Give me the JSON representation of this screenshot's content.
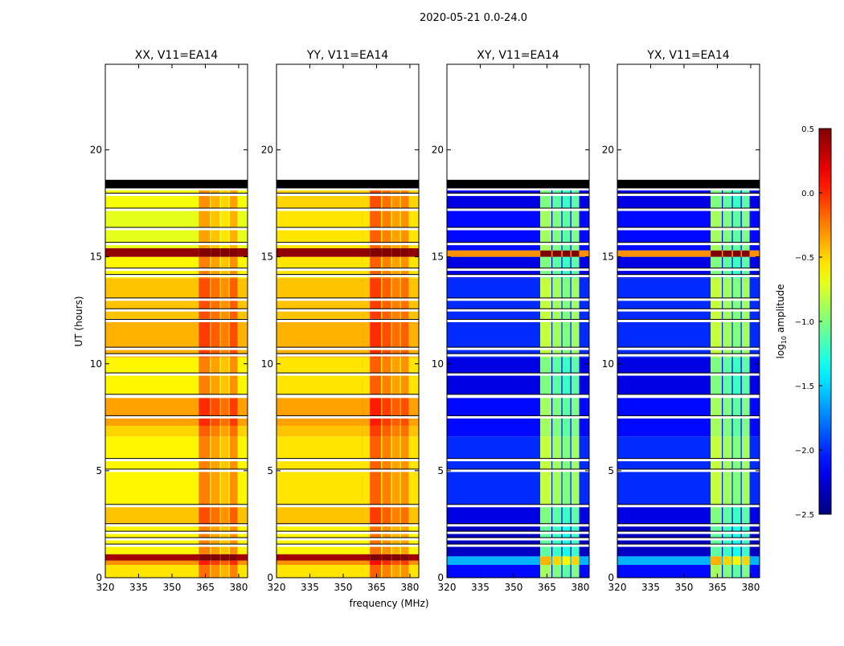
{
  "chart_data": {
    "type": "heatmap",
    "suptitle": "2020-05-21 0.0-24.0",
    "xlabel": "frequency (MHz)",
    "ylabel": "UT (hours)",
    "xlim": [
      320,
      384
    ],
    "ylim": [
      0,
      24
    ],
    "xticks": [
      "320",
      "335",
      "350",
      "365",
      "380"
    ],
    "yticks": [
      "0",
      "5",
      "10",
      "15",
      "20"
    ],
    "colorbar": {
      "label_main": "log",
      "label_sub": "10",
      "label_rest": " amplitude",
      "range": [
        -2.5,
        0.5
      ],
      "ticks": [
        "0.5",
        "0.0",
        "−0.5",
        "−1.0",
        "−1.5",
        "−2.0",
        "−2.5"
      ],
      "colormap": "jet"
    },
    "flagged_band": [
      18.2,
      18.6
    ],
    "gap_hours": [
      1.5,
      1.8,
      2.1,
      2.45,
      3.35,
      5.0,
      5.5,
      7.5,
      8.5,
      9.5,
      10.4,
      10.7,
      12.0,
      12.5,
      13.0,
      14.1,
      14.4,
      15.6,
      16.3,
      17.2,
      17.9
    ],
    "panels": [
      {
        "title": "XX, V11=EA14",
        "segments": [
          [
            0,
            0.6,
            -0.55
          ],
          [
            0.6,
            0.8,
            -0.3
          ],
          [
            0.8,
            1.1,
            0.4
          ],
          [
            1.1,
            2.4,
            -0.6
          ],
          [
            2.5,
            3.4,
            -0.45
          ],
          [
            3.4,
            6.6,
            -0.6
          ],
          [
            6.6,
            7.1,
            -0.5
          ],
          [
            7.1,
            8.4,
            -0.35
          ],
          [
            8.5,
            10.3,
            -0.6
          ],
          [
            10.3,
            12.1,
            -0.4
          ],
          [
            12.1,
            14.0,
            -0.45
          ],
          [
            14.0,
            15.0,
            -0.6
          ],
          [
            15.0,
            15.4,
            0.45
          ],
          [
            15.4,
            17.2,
            -0.7
          ],
          [
            17.2,
            18.1,
            -0.65
          ]
        ],
        "rfi_bands": [
          [
            362,
            367,
            0.35
          ],
          [
            367.5,
            371.5,
            0.25
          ],
          [
            372,
            375.5,
            0.15
          ],
          [
            376,
            379.5,
            0.3
          ]
        ]
      },
      {
        "title": "YY, V11=EA14",
        "segments": [
          [
            0,
            0.6,
            -0.55
          ],
          [
            0.6,
            0.8,
            -0.3
          ],
          [
            0.8,
            1.1,
            0.4
          ],
          [
            1.1,
            2.4,
            -0.6
          ],
          [
            2.5,
            3.4,
            -0.45
          ],
          [
            3.4,
            6.6,
            -0.55
          ],
          [
            6.6,
            7.1,
            -0.45
          ],
          [
            7.1,
            8.4,
            -0.35
          ],
          [
            8.5,
            10.3,
            -0.55
          ],
          [
            10.3,
            12.1,
            -0.4
          ],
          [
            12.1,
            14.0,
            -0.45
          ],
          [
            14.0,
            15.0,
            -0.55
          ],
          [
            15.0,
            15.4,
            0.45
          ],
          [
            15.4,
            17.2,
            -0.55
          ],
          [
            17.2,
            18.1,
            -0.5
          ]
        ],
        "rfi_bands": [
          [
            362,
            367,
            0.4
          ],
          [
            367.5,
            371.5,
            0.3
          ],
          [
            372,
            375.5,
            0.2
          ],
          [
            376,
            379.5,
            0.25
          ]
        ]
      },
      {
        "title": "XY, V11=EA14",
        "segments": [
          [
            0,
            0.6,
            -2.1
          ],
          [
            0.6,
            1.0,
            -1.6
          ],
          [
            1.0,
            2.4,
            -2.3
          ],
          [
            2.5,
            3.4,
            -2.2
          ],
          [
            3.4,
            6.6,
            -2.0
          ],
          [
            6.6,
            8.4,
            -2.1
          ],
          [
            8.5,
            10.3,
            -2.2
          ],
          [
            10.3,
            14.0,
            -2.0
          ],
          [
            14.0,
            15.0,
            -2.2
          ],
          [
            15.0,
            15.3,
            -0.3
          ],
          [
            15.3,
            17.2,
            -2.1
          ],
          [
            17.2,
            18.1,
            -2.2
          ]
        ],
        "rfi_bands": [
          [
            362,
            367,
            1.2
          ],
          [
            367.5,
            371.5,
            1.1
          ],
          [
            372,
            375.5,
            1.0
          ],
          [
            376,
            379.5,
            1.1
          ]
        ]
      },
      {
        "title": "YX, V11=EA14",
        "segments": [
          [
            0,
            0.6,
            -2.1
          ],
          [
            0.6,
            1.0,
            -1.6
          ],
          [
            1.0,
            2.4,
            -2.3
          ],
          [
            2.5,
            3.4,
            -2.2
          ],
          [
            3.4,
            6.6,
            -2.0
          ],
          [
            6.6,
            8.4,
            -2.1
          ],
          [
            8.5,
            10.3,
            -2.2
          ],
          [
            10.3,
            14.0,
            -2.0
          ],
          [
            14.0,
            15.0,
            -2.2
          ],
          [
            15.0,
            15.3,
            -0.3
          ],
          [
            15.3,
            17.2,
            -2.1
          ],
          [
            17.2,
            18.1,
            -2.2
          ]
        ],
        "rfi_bands": [
          [
            362,
            367,
            1.2
          ],
          [
            367.5,
            371.5,
            1.1
          ],
          [
            372,
            375.5,
            1.0
          ],
          [
            376,
            379.5,
            1.1
          ]
        ]
      }
    ]
  }
}
